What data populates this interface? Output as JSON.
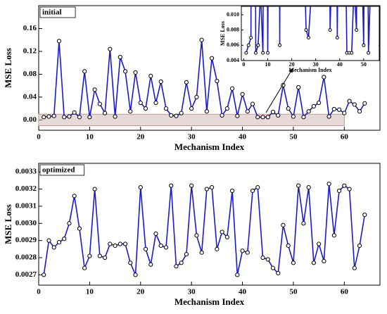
{
  "chart_data": [
    {
      "type": "line",
      "title": "initial",
      "xlabel": "Mechanism Index",
      "ylabel": "MSE Loss",
      "x": [
        1,
        2,
        3,
        4,
        5,
        6,
        7,
        8,
        9,
        10,
        11,
        12,
        13,
        14,
        15,
        16,
        17,
        18,
        19,
        20,
        21,
        22,
        23,
        24,
        25,
        26,
        27,
        28,
        29,
        30,
        31,
        32,
        33,
        34,
        35,
        36,
        37,
        38,
        39,
        40,
        41,
        42,
        43,
        44,
        45,
        46,
        47,
        48,
        49,
        50,
        51,
        52,
        53,
        54,
        55,
        56,
        57,
        58,
        59,
        60,
        61,
        62,
        63,
        64
      ],
      "values": [
        0.005,
        0.006,
        0.007,
        0.138,
        0.005,
        0.006,
        0.013,
        0.005,
        0.085,
        0.005,
        0.053,
        0.028,
        0.012,
        0.124,
        0.006,
        0.11,
        0.085,
        0.015,
        0.083,
        0.03,
        0.02,
        0.077,
        0.03,
        0.067,
        0.02,
        0.008,
        0.007,
        0.012,
        0.066,
        0.02,
        0.04,
        0.14,
        0.015,
        0.108,
        0.068,
        0.008,
        0.02,
        0.055,
        0.007,
        0.045,
        0.015,
        0.028,
        0.005,
        0.005,
        0.005,
        0.014,
        0.008,
        0.061,
        0.02,
        0.006,
        0.057,
        0.005,
        0.015,
        0.024,
        0.03,
        0.075,
        0.006,
        0.019,
        0.018,
        0.012,
        0.033,
        0.027,
        0.015,
        0.029
      ],
      "color": "#1a1acc",
      "xlim": [
        0,
        67
      ],
      "ylim": [
        -0.018,
        0.2
      ],
      "xticks": [
        0,
        10,
        20,
        30,
        40,
        50,
        60
      ],
      "yticks": [
        {
          "value": 0,
          "label": "0.00"
        },
        {
          "value": 0.04,
          "label": "0.04"
        },
        {
          "value": 0.08,
          "label": "0.08"
        },
        {
          "value": 0.12,
          "label": "0.12"
        },
        {
          "value": 0.16,
          "label": "0.16"
        }
      ],
      "highlight": {
        "x": [
          0,
          60
        ],
        "y": [
          -0.01,
          0.01
        ]
      },
      "inset": {
        "xlabel": "Mechanism Index",
        "ylabel": "MSE Loss",
        "xlim": [
          -1,
          56.5
        ],
        "ylim": [
          0.004,
          0.0111
        ],
        "xticks": [
          0,
          10,
          20,
          30,
          40,
          50
        ],
        "yticks": [
          {
            "value": 0.004,
            "label": "0.004"
          },
          {
            "value": 0.006,
            "label": "0.006"
          },
          {
            "value": 0.008,
            "label": "0.008"
          },
          {
            "value": 0.01,
            "label": "0.010"
          }
        ]
      }
    },
    {
      "type": "line",
      "title": "optimized",
      "xlabel": "Mechanism Index",
      "ylabel": "MSE Loss",
      "x": [
        1,
        2,
        3,
        4,
        5,
        6,
        7,
        8,
        9,
        10,
        11,
        12,
        13,
        14,
        15,
        16,
        17,
        18,
        19,
        20,
        21,
        22,
        23,
        24,
        25,
        26,
        27,
        28,
        29,
        30,
        31,
        32,
        33,
        34,
        35,
        36,
        37,
        38,
        39,
        40,
        41,
        42,
        43,
        44,
        45,
        46,
        47,
        48,
        49,
        50,
        51,
        52,
        53,
        54,
        55,
        56,
        57,
        58,
        59,
        60,
        61,
        62,
        63,
        64
      ],
      "values": [
        0.0027,
        0.0029,
        0.00286,
        0.00289,
        0.00291,
        0.003,
        0.00316,
        0.00297,
        0.00274,
        0.00281,
        0.0032,
        0.00281,
        0.0028,
        0.00288,
        0.00287,
        0.00288,
        0.00288,
        0.00277,
        0.0027,
        0.00321,
        0.00285,
        0.00276,
        0.00294,
        0.00287,
        0.00286,
        0.00322,
        0.00275,
        0.00277,
        0.00282,
        0.00322,
        0.00293,
        0.00283,
        0.0032,
        0.00321,
        0.00285,
        0.00295,
        0.00292,
        0.00319,
        0.0027,
        0.00284,
        0.00283,
        0.00319,
        0.00321,
        0.0028,
        0.00279,
        0.00274,
        0.00271,
        0.00299,
        0.00287,
        0.00277,
        0.00322,
        0.003,
        0.00321,
        0.00277,
        0.00288,
        0.00278,
        0.00323,
        0.00293,
        0.00319,
        0.00322,
        0.0032,
        0.00274,
        0.00287,
        0.00305
      ],
      "color": "#1a1acc",
      "xlim": [
        0,
        67
      ],
      "ylim": [
        0.00264,
        0.00335
      ],
      "xticks": [
        0,
        10,
        20,
        30,
        40,
        50,
        60
      ],
      "yticks": [
        {
          "value": 0.0027,
          "label": "0.0027"
        },
        {
          "value": 0.0028,
          "label": "0.0028"
        },
        {
          "value": 0.0029,
          "label": "0.0029"
        },
        {
          "value": 0.003,
          "label": "0.0030"
        },
        {
          "value": 0.0031,
          "label": "0.0031"
        },
        {
          "value": 0.0032,
          "label": "0.0032"
        },
        {
          "value": 0.0033,
          "label": "0.0033"
        }
      ]
    }
  ]
}
